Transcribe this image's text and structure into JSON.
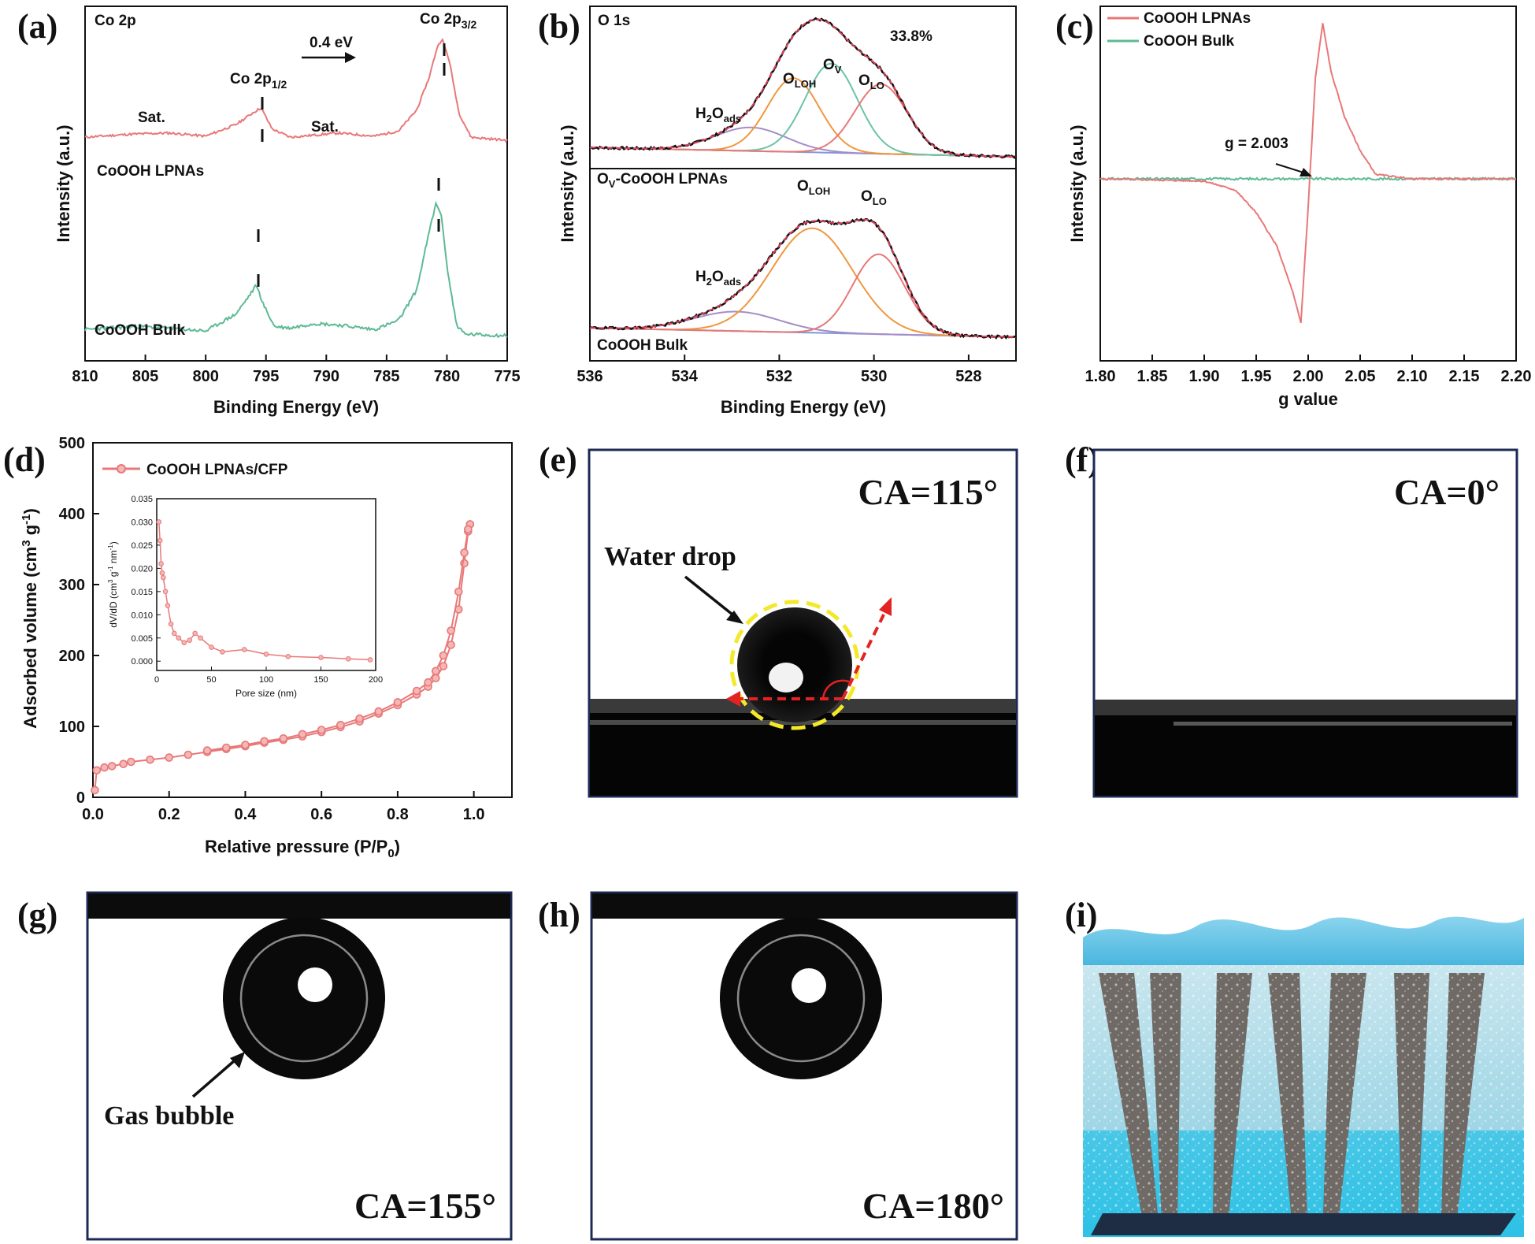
{
  "panel_letters": {
    "a": "(a)",
    "b": "(b)",
    "c": "(c)",
    "d": "(d)",
    "e": "(e)",
    "f": "(f)",
    "g": "(g)",
    "h": "(h)",
    "i": "(i)"
  },
  "colors": {
    "red": "#E87878",
    "green": "#5DBA94",
    "orange": "#F0973F",
    "purple": "#A58CC8",
    "teal": "#6CC3A8",
    "blue": "#7F98D8",
    "dashed_fit": "#E0405A",
    "frame": "#1C2A55"
  },
  "chart_data": [
    {
      "id": "a",
      "type": "line",
      "corner_label": "Co 2p",
      "xlabel": "Binding Energy (eV)",
      "ylabel": "Intensity (a.u.)",
      "xlim": [
        810,
        775
      ],
      "xticks": [
        "810",
        "805",
        "800",
        "795",
        "790",
        "785",
        "780",
        "775"
      ],
      "series": [
        {
          "name": "CoOOH LPNAs",
          "x": [
            810,
            806,
            803,
            800,
            797.5,
            796,
            795.4,
            794.5,
            793,
            791,
            789,
            786,
            784,
            782.5,
            781.5,
            780.8,
            780.4,
            779.8,
            779,
            778,
            775
          ],
          "y": [
            4.2,
            4.5,
            4.6,
            4.3,
            5.4,
            6.6,
            7.0,
            5.0,
            4.2,
            4.4,
            4.6,
            4.3,
            4.8,
            6.8,
            9.8,
            12.8,
            13.6,
            11.5,
            6.5,
            4.2,
            3.9
          ]
        },
        {
          "name": "CoOOH Bulk",
          "x": [
            810,
            806,
            803,
            800,
            797.5,
            796.3,
            795.8,
            795.2,
            794.3,
            793,
            791,
            789,
            786,
            784,
            782.5,
            781.4,
            780.9,
            780.5,
            779.9,
            779.2,
            778.5,
            775
          ],
          "y": [
            0.6,
            0.8,
            0.7,
            0.5,
            1.6,
            2.9,
            3.5,
            2.2,
            0.8,
            0.7,
            1.0,
            0.9,
            0.6,
            1.2,
            3.2,
            7.2,
            8.8,
            8.2,
            4.2,
            0.9,
            0.3,
            0.2
          ]
        }
      ],
      "annotations": {
        "sat_left": "Sat.",
        "sat_right": "Sat.",
        "peak_half": "Co 2p",
        "peak_half_sub": "1/2",
        "peak_three_half": "Co 2p",
        "peak_three_half_sub": "3/2",
        "shift": "0.4 eV",
        "label_lpnas": "CoOOH LPNAs",
        "label_bulk": "CoOOH Bulk"
      }
    },
    {
      "id": "b",
      "type": "line",
      "corner_label": "O 1s",
      "xlabel": "Binding Energy (eV)",
      "ylabel": "Intensity (a.u.)",
      "xlim": [
        536,
        527
      ],
      "xticks": [
        "536",
        "534",
        "532",
        "530",
        "528"
      ],
      "top": {
        "label": "O",
        "label_sub": "V",
        "label_tail": "-CoOOH LPNAs",
        "percent": "33.8%",
        "peaks": [
          {
            "name": "H2Oads",
            "center": 532.6,
            "height": 1.15,
            "width": 0.75,
            "color": "purple"
          },
          {
            "name": "OLOH",
            "center": 531.7,
            "height": 3.6,
            "width": 0.55,
            "color": "orange"
          },
          {
            "name": "OV",
            "center": 530.9,
            "height": 4.35,
            "width": 0.55,
            "color": "teal"
          },
          {
            "name": "OLO",
            "center": 529.85,
            "height": 3.4,
            "width": 0.55,
            "color": "red"
          }
        ],
        "peak_labels": [
          {
            "main": "H",
            "sub1": "2",
            "mid": "O",
            "sub2": "ads"
          },
          {
            "main": "O",
            "sub1": "LOH"
          },
          {
            "main": "O",
            "sub1": "V"
          },
          {
            "main": "O",
            "sub1": "LO"
          }
        ]
      },
      "bottom": {
        "label": "CoOOH Bulk",
        "peaks": [
          {
            "name": "H2Oads",
            "center": 532.9,
            "height": 0.95,
            "width": 0.9,
            "color": "purple"
          },
          {
            "name": "OLOH",
            "center": 531.3,
            "height": 5.1,
            "width": 0.85,
            "color": "orange"
          },
          {
            "name": "OLO",
            "center": 529.9,
            "height": 3.9,
            "width": 0.55,
            "color": "red"
          }
        ],
        "peak_labels": [
          {
            "main": "H",
            "sub1": "2",
            "mid": "O",
            "sub2": "ads"
          },
          {
            "main": "O",
            "sub1": "LOH"
          },
          {
            "main": "O",
            "sub1": "LO"
          }
        ]
      }
    },
    {
      "id": "c",
      "type": "line",
      "xlabel": "g value",
      "ylabel": "Intensity (a.u.)",
      "xlim": [
        1.8,
        2.2
      ],
      "xticks": [
        "1.80",
        "1.85",
        "1.90",
        "1.95",
        "2.00",
        "2.05",
        "2.10",
        "2.15",
        "2.20"
      ],
      "series": [
        {
          "name": "CoOOH LPNAs",
          "x": [
            1.8,
            1.9,
            1.93,
            1.95,
            1.97,
            1.985,
            1.993,
            2.0,
            2.007,
            2.014,
            2.022,
            2.035,
            2.05,
            2.065,
            2.1,
            2.2
          ],
          "y": [
            0,
            -0.02,
            -0.1,
            -0.3,
            -0.6,
            -1.0,
            -1.28,
            -0.25,
            0.9,
            1.38,
            0.95,
            0.55,
            0.25,
            0.04,
            0,
            0
          ]
        },
        {
          "name": "CoOOH Bulk",
          "x": [
            1.8,
            2.2
          ],
          "y": [
            0,
            0
          ]
        }
      ],
      "annotation": "g = 2.003",
      "annotation_x": 2.003
    },
    {
      "id": "d",
      "type": "line",
      "legend": "CoOOH LPNAs/CFP",
      "xlabel": "Relative pressure (P/P",
      "xlabel_sub": "0",
      "xlabel_tail": ")",
      "ylabel": "Adsorbed volume (cm",
      "ylabel_sup1": "3",
      "ylabel_mid": " g",
      "ylabel_sup2": "-1",
      "ylabel_tail": ")",
      "xlim": [
        0,
        1.1
      ],
      "ylim": [
        0,
        500
      ],
      "xticks": [
        "0.0",
        "0.2",
        "0.4",
        "0.6",
        "0.8",
        "1.0"
      ],
      "yticks": [
        "0",
        "100",
        "200",
        "300",
        "400",
        "500"
      ],
      "series": [
        {
          "name": "adsorption",
          "x": [
            0.005,
            0.01,
            0.03,
            0.05,
            0.08,
            0.1,
            0.15,
            0.2,
            0.25,
            0.3,
            0.35,
            0.4,
            0.45,
            0.5,
            0.55,
            0.6,
            0.65,
            0.7,
            0.75,
            0.8,
            0.85,
            0.88,
            0.9,
            0.92,
            0.94,
            0.96,
            0.975,
            0.985,
            0.99
          ],
          "y": [
            10,
            38,
            42,
            44,
            47,
            50,
            53,
            56,
            60,
            64,
            68,
            72,
            77,
            81,
            86,
            92,
            99,
            107,
            118,
            130,
            145,
            156,
            168,
            185,
            215,
            265,
            330,
            375,
            385
          ]
        },
        {
          "name": "desorption",
          "x": [
            0.99,
            0.985,
            0.975,
            0.96,
            0.94,
            0.92,
            0.9,
            0.88,
            0.85,
            0.8,
            0.75,
            0.7,
            0.65,
            0.6,
            0.55,
            0.5,
            0.45,
            0.4,
            0.35,
            0.3
          ],
          "y": [
            385,
            378,
            345,
            290,
            235,
            200,
            178,
            162,
            150,
            134,
            121,
            111,
            102,
            95,
            89,
            83,
            79,
            74,
            70,
            66
          ]
        }
      ],
      "inset": {
        "xlabel": "Pore size (nm)",
        "ylabel": "dV/dD (cm",
        "ylabel_sup1": "3",
        "ylabel_mid": " g",
        "ylabel_sup2": "-1",
        "ylabel_mid2": " nm",
        "ylabel_sup3": "-1",
        "ylabel_tail": ")",
        "xlim": [
          0,
          200
        ],
        "ylim": [
          -0.002,
          0.035
        ],
        "xticks": [
          "0",
          "50",
          "100",
          "150",
          "200"
        ],
        "yticks": [
          "0.000",
          "0.005",
          "0.010",
          "0.015",
          "0.020",
          "0.025",
          "0.030",
          "0.035"
        ],
        "x": [
          2,
          3,
          4,
          5,
          6,
          8,
          10,
          13,
          16,
          20,
          25,
          30,
          35,
          40,
          50,
          60,
          80,
          100,
          120,
          150,
          175,
          195
        ],
        "y": [
          0.03,
          0.026,
          0.021,
          0.019,
          0.018,
          0.015,
          0.012,
          0.008,
          0.006,
          0.005,
          0.004,
          0.0045,
          0.006,
          0.005,
          0.003,
          0.002,
          0.0025,
          0.0015,
          0.001,
          0.0008,
          0.0005,
          0.0003
        ]
      }
    }
  ],
  "photos": {
    "e": {
      "ca": "CA=115°",
      "callout": "Water drop"
    },
    "f": {
      "ca": "CA=0°"
    },
    "g": {
      "ca": "CA=155°",
      "callout": "Gas bubble"
    },
    "h": {
      "ca": "CA=180°"
    }
  }
}
